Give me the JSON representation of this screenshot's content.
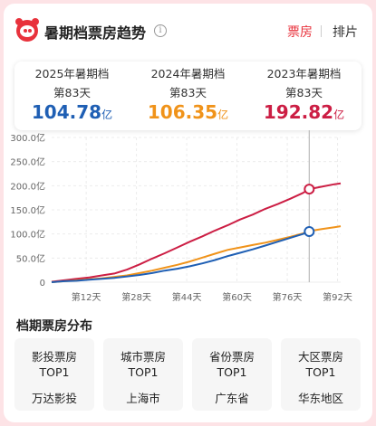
{
  "header": {
    "title": "暑期档票房趋势",
    "info_glyph": "i",
    "tabs": [
      {
        "label": "票房",
        "active": true
      },
      {
        "label": "排片",
        "active": false
      }
    ],
    "accent_color": "#e8323c"
  },
  "stats": [
    {
      "year_label": "2025年暑期档",
      "day_label": "第83天",
      "value": "104.78",
      "unit": "亿",
      "color": "#1f5fb4"
    },
    {
      "year_label": "2024年暑期档",
      "day_label": "第83天",
      "value": "106.35",
      "unit": "亿",
      "color": "#f0931a"
    },
    {
      "year_label": "2023年暑期档",
      "day_label": "第83天",
      "value": "192.82",
      "unit": "亿",
      "color": "#cc1e44"
    }
  ],
  "chart_data": {
    "type": "line",
    "ylim": [
      0,
      300
    ],
    "xlim": [
      1,
      93
    ],
    "y_ticks": [
      "0",
      "50.0亿",
      "100.0亿",
      "150.0亿",
      "200.0亿",
      "250.0亿",
      "300.0亿"
    ],
    "y_tick_values": [
      0,
      50,
      100,
      150,
      200,
      250,
      300
    ],
    "x_ticks": [
      "第12天",
      "第28天",
      "第44天",
      "第60天",
      "第76天",
      "第92天"
    ],
    "x_tick_values": [
      12,
      28,
      44,
      60,
      76,
      92
    ],
    "cursor_day": 83,
    "series": [
      {
        "color": "#cc1e44",
        "x": [
          1,
          5,
          9,
          13,
          17,
          21,
          25,
          29,
          33,
          37,
          41,
          45,
          49,
          53,
          57,
          61,
          65,
          69,
          73,
          77,
          81,
          83,
          87,
          91,
          93
        ],
        "y": [
          1,
          4,
          7,
          10,
          14,
          18,
          26,
          37,
          49,
          60,
          72,
          84,
          95,
          107,
          118,
          130,
          140,
          152,
          162,
          173,
          185,
          193,
          198,
          203,
          205
        ]
      },
      {
        "color": "#f0931a",
        "x": [
          1,
          5,
          9,
          13,
          17,
          21,
          25,
          29,
          33,
          37,
          41,
          45,
          49,
          53,
          57,
          61,
          65,
          69,
          73,
          77,
          81,
          83,
          87,
          91,
          93
        ],
        "y": [
          0,
          2,
          4,
          6,
          8,
          11,
          14,
          19,
          24,
          30,
          36,
          43,
          51,
          59,
          67,
          72,
          77,
          82,
          88,
          94,
          101,
          106,
          110,
          114,
          116
        ]
      },
      {
        "color": "#1f5fb4",
        "x": [
          1,
          5,
          9,
          13,
          17,
          21,
          25,
          29,
          33,
          37,
          41,
          45,
          49,
          53,
          57,
          61,
          65,
          69,
          73,
          77,
          81,
          83
        ],
        "y": [
          0,
          2,
          3,
          5,
          7,
          9,
          12,
          15,
          19,
          24,
          28,
          33,
          39,
          46,
          54,
          61,
          68,
          76,
          84,
          92,
          100,
          105
        ]
      }
    ],
    "markers": [
      {
        "series": 0,
        "x": 83,
        "y": 193
      },
      {
        "series": 2,
        "x": 83,
        "y": 105
      }
    ]
  },
  "distribution": {
    "title": "档期票房分布",
    "cards": [
      {
        "line1": "影投票房",
        "line2": "TOP1",
        "value": "万达影投"
      },
      {
        "line1": "城市票房",
        "line2": "TOP1",
        "value": "上海市"
      },
      {
        "line1": "省份票房",
        "line2": "TOP1",
        "value": "广东省"
      },
      {
        "line1": "大区票房",
        "line2": "TOP1",
        "value": "华东地区"
      }
    ]
  }
}
